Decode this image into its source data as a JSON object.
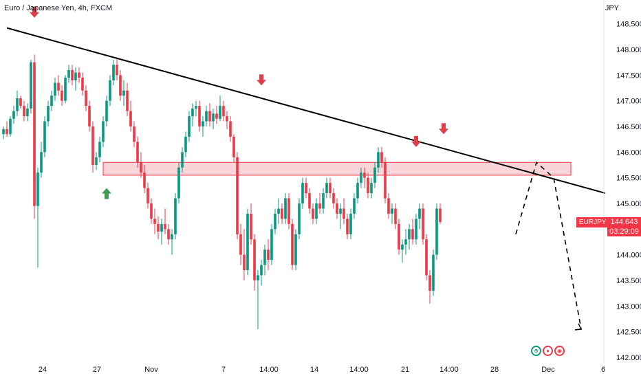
{
  "header": {
    "symbol_title": "Euro / Japanese Yen, 4h, FXCM",
    "currency": "JPY"
  },
  "price_tag": {
    "symbol": "EURJPY",
    "price": "144.643",
    "countdown": "03:29:09"
  },
  "colors": {
    "up": "#089981",
    "down": "#f23645",
    "zone_fill": "#f7c6cc",
    "zone_stroke": "#f23645",
    "trendline": "#000000",
    "arrow_down": "#e03e4b",
    "arrow_up": "#3e9b54"
  },
  "chart_data": {
    "type": "candlestick",
    "title": "Euro / Japanese Yen, 4h, FXCM",
    "ylabel": "JPY",
    "ylim": [
      142.0,
      148.75
    ],
    "y_ticks": [
      "148.500",
      "148.000",
      "147.500",
      "147.000",
      "146.500",
      "146.000",
      "145.500",
      "145.000",
      "144.500",
      "144.000",
      "143.500",
      "143.000",
      "142.500",
      "142.000"
    ],
    "x_ticks": [
      "24",
      "27",
      "Nov",
      "7",
      "14:00",
      "14",
      "14:00",
      "21",
      "14:00",
      "28",
      "Dec",
      "6"
    ],
    "candles": [
      [
        146.35,
        146.5,
        146.25,
        146.45
      ],
      [
        146.45,
        146.6,
        146.3,
        146.35
      ],
      [
        146.35,
        146.7,
        146.3,
        146.65
      ],
      [
        146.65,
        146.9,
        146.55,
        146.8
      ],
      [
        146.8,
        147.2,
        146.7,
        147.05
      ],
      [
        147.05,
        147.1,
        146.85,
        146.9
      ],
      [
        146.9,
        147.0,
        146.6,
        146.7
      ],
      [
        146.7,
        146.95,
        146.6,
        146.85
      ],
      [
        146.85,
        147.8,
        146.75,
        147.75
      ],
      [
        147.75,
        147.9,
        144.7,
        144.95
      ],
      [
        144.95,
        145.7,
        143.75,
        145.6
      ],
      [
        145.6,
        146.2,
        145.5,
        146.0
      ],
      [
        146.0,
        146.7,
        145.9,
        146.6
      ],
      [
        146.6,
        147.0,
        146.5,
        146.9
      ],
      [
        146.9,
        147.2,
        146.8,
        147.1
      ],
      [
        147.1,
        147.45,
        147.0,
        147.35
      ],
      [
        147.35,
        147.5,
        147.1,
        147.2
      ],
      [
        147.2,
        147.3,
        146.9,
        147.0
      ],
      [
        147.0,
        147.5,
        146.95,
        147.45
      ],
      [
        147.45,
        147.7,
        147.35,
        147.6
      ],
      [
        147.6,
        147.7,
        147.3,
        147.4
      ],
      [
        147.4,
        147.65,
        147.2,
        147.55
      ],
      [
        147.55,
        147.65,
        147.35,
        147.45
      ],
      [
        147.45,
        147.55,
        147.1,
        147.2
      ],
      [
        147.2,
        147.3,
        146.8,
        146.9
      ],
      [
        146.9,
        147.0,
        146.4,
        146.5
      ],
      [
        146.5,
        146.6,
        145.6,
        145.75
      ],
      [
        145.75,
        146.0,
        145.65,
        145.9
      ],
      [
        145.9,
        146.3,
        145.8,
        146.2
      ],
      [
        146.2,
        146.7,
        146.1,
        146.6
      ],
      [
        146.6,
        147.1,
        146.5,
        147.0
      ],
      [
        147.0,
        147.5,
        146.9,
        147.4
      ],
      [
        147.4,
        147.8,
        147.3,
        147.7
      ],
      [
        147.7,
        147.85,
        147.4,
        147.5
      ],
      [
        147.5,
        147.6,
        147.0,
        147.1
      ],
      [
        147.1,
        147.4,
        146.9,
        147.2
      ],
      [
        147.2,
        147.35,
        146.7,
        146.8
      ],
      [
        146.8,
        147.0,
        146.4,
        146.5
      ],
      [
        146.5,
        146.6,
        146.1,
        146.2
      ],
      [
        146.2,
        146.3,
        145.7,
        145.8
      ],
      [
        145.8,
        146.0,
        145.5,
        145.6
      ],
      [
        145.6,
        145.75,
        145.2,
        145.3
      ],
      [
        145.3,
        145.4,
        144.9,
        145.0
      ],
      [
        145.0,
        145.1,
        144.6,
        144.7
      ],
      [
        144.7,
        144.9,
        144.4,
        144.6
      ],
      [
        144.6,
        144.75,
        144.3,
        144.45
      ],
      [
        144.45,
        144.7,
        144.2,
        144.6
      ],
      [
        144.6,
        144.9,
        144.4,
        144.5
      ],
      [
        144.5,
        144.6,
        144.2,
        144.3
      ],
      [
        144.3,
        144.5,
        144.0,
        144.4
      ],
      [
        144.4,
        145.2,
        144.3,
        145.1
      ],
      [
        145.1,
        145.8,
        145.0,
        145.7
      ],
      [
        145.7,
        146.1,
        145.6,
        146.0
      ],
      [
        146.0,
        146.4,
        145.9,
        146.3
      ],
      [
        146.3,
        146.8,
        146.2,
        146.7
      ],
      [
        146.7,
        146.95,
        146.5,
        146.85
      ],
      [
        146.85,
        147.0,
        146.7,
        146.9
      ],
      [
        146.9,
        147.0,
        146.4,
        146.5
      ],
      [
        146.5,
        146.7,
        146.3,
        146.6
      ],
      [
        146.6,
        146.9,
        146.5,
        146.8
      ],
      [
        146.8,
        146.95,
        146.5,
        146.6
      ],
      [
        146.6,
        146.85,
        146.45,
        146.75
      ],
      [
        146.75,
        146.9,
        146.55,
        146.65
      ],
      [
        146.65,
        147.1,
        146.6,
        146.9
      ],
      [
        146.9,
        147.0,
        146.6,
        146.7
      ],
      [
        146.7,
        146.8,
        146.45,
        146.6
      ],
      [
        146.6,
        146.7,
        146.2,
        146.3
      ],
      [
        146.3,
        146.35,
        145.8,
        145.9
      ],
      [
        145.9,
        146.0,
        144.3,
        144.4
      ],
      [
        144.4,
        144.6,
        143.8,
        144.0
      ],
      [
        144.0,
        144.5,
        143.5,
        143.7
      ],
      [
        143.7,
        144.9,
        143.6,
        144.8
      ],
      [
        144.8,
        145.0,
        144.2,
        144.3
      ],
      [
        144.3,
        144.4,
        143.3,
        143.5
      ],
      [
        143.5,
        143.7,
        142.55,
        143.6
      ],
      [
        143.6,
        143.9,
        143.4,
        143.8
      ],
      [
        143.8,
        144.2,
        143.6,
        144.1
      ],
      [
        144.1,
        144.3,
        143.7,
        143.9
      ],
      [
        143.9,
        144.6,
        143.8,
        144.5
      ],
      [
        144.5,
        144.9,
        144.4,
        144.8
      ],
      [
        144.8,
        145.1,
        144.6,
        144.9
      ],
      [
        144.9,
        145.0,
        144.6,
        144.7
      ],
      [
        144.7,
        145.2,
        144.6,
        145.1
      ],
      [
        145.1,
        145.2,
        144.5,
        144.6
      ],
      [
        144.6,
        144.7,
        143.7,
        143.8
      ],
      [
        143.8,
        144.5,
        143.7,
        144.4
      ],
      [
        144.4,
        145.1,
        144.3,
        145.0
      ],
      [
        145.0,
        145.5,
        144.9,
        145.4
      ],
      [
        145.4,
        145.5,
        145.1,
        145.2
      ],
      [
        145.2,
        145.3,
        144.8,
        144.9
      ],
      [
        144.9,
        145.0,
        144.6,
        144.7
      ],
      [
        144.7,
        145.1,
        144.6,
        145.0
      ],
      [
        145.0,
        145.2,
        144.8,
        144.9
      ],
      [
        144.9,
        145.3,
        144.8,
        145.2
      ],
      [
        145.2,
        145.5,
        145.1,
        145.4
      ],
      [
        145.4,
        145.5,
        145.1,
        145.2
      ],
      [
        145.2,
        145.3,
        144.9,
        145.0
      ],
      [
        145.0,
        145.1,
        144.7,
        144.8
      ],
      [
        144.8,
        145.0,
        144.5,
        144.9
      ],
      [
        144.9,
        145.1,
        144.6,
        144.7
      ],
      [
        144.7,
        144.8,
        144.3,
        144.4
      ],
      [
        144.4,
        144.9,
        144.3,
        144.8
      ],
      [
        144.8,
        145.2,
        144.7,
        145.1
      ],
      [
        145.1,
        145.5,
        145.0,
        145.4
      ],
      [
        145.4,
        145.7,
        145.3,
        145.6
      ],
      [
        145.6,
        145.7,
        145.3,
        145.5
      ],
      [
        145.5,
        145.6,
        145.1,
        145.2
      ],
      [
        145.2,
        145.5,
        145.1,
        145.4
      ],
      [
        145.4,
        145.8,
        145.3,
        145.7
      ],
      [
        145.7,
        146.1,
        145.6,
        146.0
      ],
      [
        146.0,
        146.1,
        145.7,
        145.8
      ],
      [
        145.8,
        145.9,
        145.0,
        145.1
      ],
      [
        145.1,
        145.2,
        144.7,
        144.8
      ],
      [
        144.8,
        145.0,
        144.6,
        144.9
      ],
      [
        144.9,
        145.0,
        144.5,
        144.6
      ],
      [
        144.6,
        144.7,
        144.0,
        144.1
      ],
      [
        144.1,
        144.3,
        143.85,
        144.2
      ],
      [
        144.2,
        144.5,
        144.0,
        144.3
      ],
      [
        144.3,
        144.6,
        144.1,
        144.5
      ],
      [
        144.5,
        144.7,
        144.2,
        144.3
      ],
      [
        144.3,
        144.8,
        144.2,
        144.7
      ],
      [
        144.7,
        145.0,
        144.5,
        144.9
      ],
      [
        144.9,
        145.0,
        144.2,
        144.3
      ],
      [
        144.3,
        144.4,
        143.5,
        143.6
      ],
      [
        143.6,
        143.7,
        143.05,
        143.3
      ],
      [
        143.3,
        144.1,
        143.2,
        144.0
      ],
      [
        144.0,
        145.0,
        143.9,
        144.9
      ],
      [
        144.9,
        145.0,
        144.6,
        144.64
      ]
    ],
    "trendline": {
      "start": [
        0,
        148.42
      ],
      "end": [
        175,
        145.2
      ]
    },
    "resistance_zone": {
      "x_range": [
        29,
        165
      ],
      "y_range": [
        145.55,
        145.8
      ]
    },
    "projection": [
      [
        149,
        144.4
      ],
      [
        155,
        145.8
      ],
      [
        160,
        145.5
      ],
      [
        168,
        142.55
      ]
    ],
    "down_arrows": [
      [
        9,
        148.62
      ],
      [
        75,
        147.3
      ],
      [
        120,
        146.1
      ],
      [
        128,
        146.35
      ]
    ],
    "up_arrows": [
      [
        30,
        145.3
      ]
    ]
  }
}
